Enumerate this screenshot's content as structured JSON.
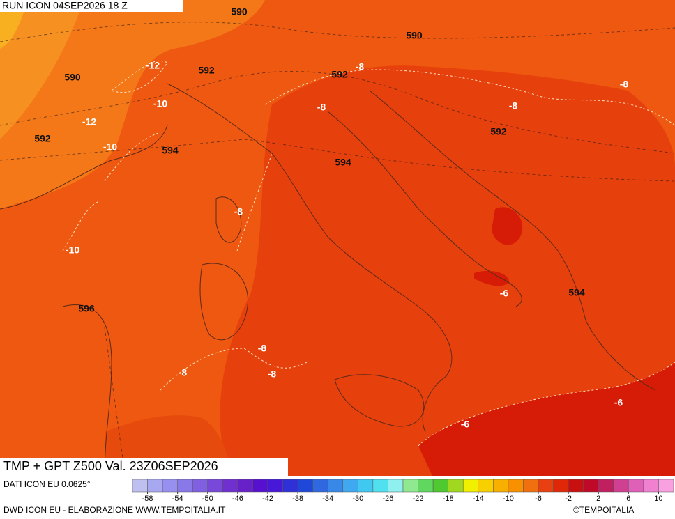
{
  "header": {
    "run": "RUN ICON 04SEP2026 18 Z"
  },
  "map": {
    "labels": [
      590,
      590,
      590,
      -12,
      592,
      592,
      -8,
      -10,
      -12,
      -8,
      -8,
      -8,
      592,
      592,
      -10,
      594,
      594,
      -8,
      -10,
      -6,
      594,
      596,
      -8,
      -8,
      -8,
      -6,
      -6
    ]
  },
  "footer": {
    "title": "TMP + GPT Z500 Val. 23Z06SEP2026",
    "source": "DATI ICON EU 0.0625°",
    "credit": "DWD ICON EU - ELABORAZIONE WWW.TEMPOITALIA.IT",
    "copyright": "©TEMPOITALIA"
  },
  "legend": {
    "range": [
      -60,
      12
    ],
    "ticks": [
      -58,
      -54,
      -50,
      -46,
      -42,
      -38,
      -34,
      -30,
      -26,
      -22,
      -18,
      -14,
      -10,
      -6,
      -2,
      2,
      6,
      10
    ],
    "colors": [
      "#c0c0f0",
      "#a8a8f0",
      "#9890f0",
      "#8878e8",
      "#8060e0",
      "#7848d8",
      "#7030d0",
      "#6820c8",
      "#5810d0",
      "#4818d8",
      "#3030d8",
      "#2048d8",
      "#3068e0",
      "#3888e8",
      "#40a8f0",
      "#40c8f0",
      "#50e0f0",
      "#90f0f0",
      "#90e890",
      "#60d860",
      "#50c830",
      "#a0d820",
      "#f0f000",
      "#f8d000",
      "#f8b000",
      "#f89000",
      "#f07010",
      "#e84010",
      "#e02808",
      "#c81010",
      "#c00828",
      "#c02060",
      "#d04090",
      "#e060b8",
      "#f080d0",
      "#f8a0e0"
    ]
  }
}
